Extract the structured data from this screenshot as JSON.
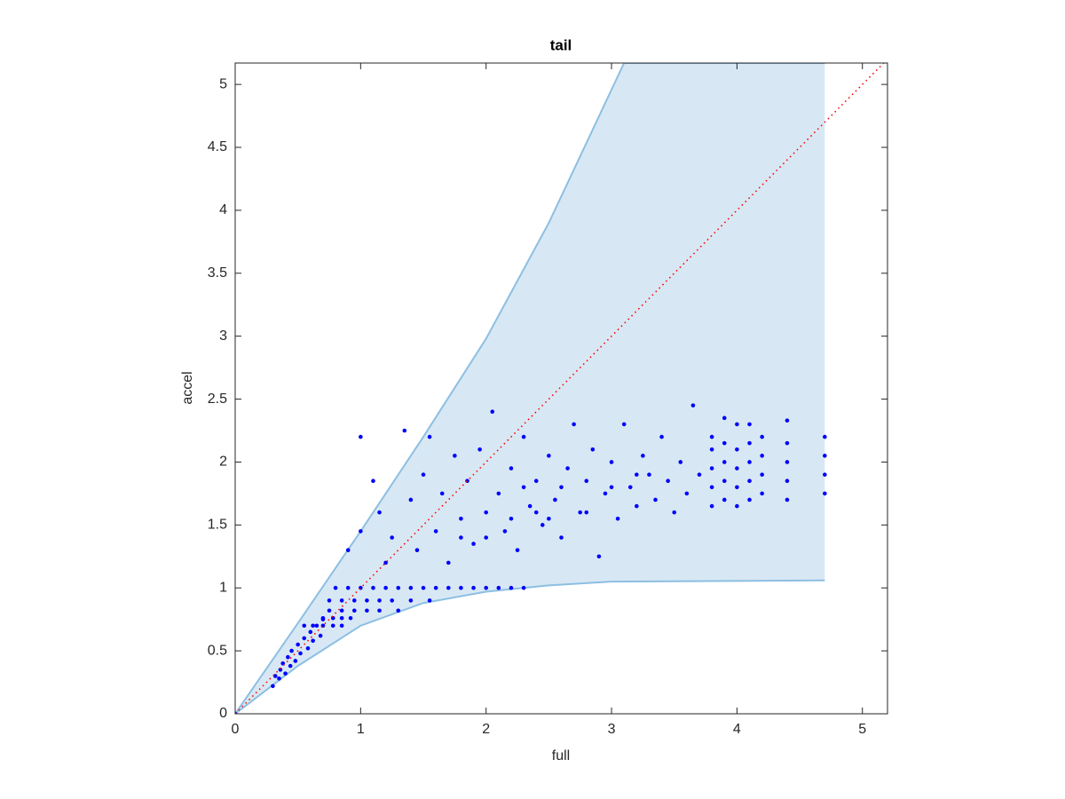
{
  "chart_data": {
    "type": "scatter",
    "title": "tail",
    "xlabel": "full",
    "ylabel": "accel",
    "xlim": [
      0,
      5.2
    ],
    "ylim": [
      0,
      5.17
    ],
    "xticks": [
      0,
      1,
      2,
      3,
      4,
      5
    ],
    "yticks": [
      0,
      0.5,
      1,
      1.5,
      2,
      2.5,
      3,
      3.5,
      4,
      4.5,
      5
    ],
    "band": {
      "color": "#d7e8f4",
      "edge_color": "#8dbfe2",
      "upper": {
        "x": [
          0,
          0.5,
          1,
          1.5,
          2,
          2.5,
          3.1,
          4.7
        ],
        "values": [
          0,
          0.72,
          1.45,
          2.2,
          2.98,
          3.9,
          5.17,
          5.17
        ]
      },
      "lower": {
        "x": [
          0,
          0.5,
          1,
          1.5,
          2,
          2.5,
          3,
          4.7
        ],
        "values": [
          0,
          0.38,
          0.7,
          0.88,
          0.97,
          1.02,
          1.05,
          1.06
        ]
      }
    },
    "reference": {
      "color": "#ff0000",
      "x": [
        0,
        5.2
      ],
      "values": [
        0,
        5.2
      ]
    },
    "series": [
      {
        "color": "#0000ff",
        "x": [
          0,
          0.3,
          0.32,
          0.35,
          0.36,
          0.38,
          0.4,
          0.42,
          0.44,
          0.45,
          0.48,
          0.5,
          0.52,
          0.55,
          0.58,
          0.6,
          0.62,
          0.65,
          0.68,
          0.7,
          0.55,
          0.62,
          0.7,
          0.78,
          0.85,
          0.7,
          0.78,
          0.85,
          0.92,
          0.75,
          0.85,
          0.95,
          1.05,
          1.15,
          1.3,
          0.75,
          0.85,
          0.95,
          1.05,
          1.15,
          1.25,
          1.4,
          1.55,
          0.8,
          0.9,
          1.0,
          1.1,
          1.2,
          1.3,
          1.4,
          1.5,
          1.6,
          1.7,
          1.8,
          1.9,
          2.0,
          2.1,
          2.2,
          2.3,
          0.9,
          1.0,
          1.0,
          1.1,
          1.15,
          1.2,
          1.25,
          1.35,
          1.4,
          1.45,
          1.5,
          1.55,
          1.6,
          1.65,
          1.7,
          1.75,
          1.8,
          1.85,
          1.9,
          1.95,
          2.0,
          2.05,
          2.1,
          2.15,
          2.2,
          2.25,
          2.3,
          2.35,
          2.4,
          2.45,
          2.5,
          2.55,
          2.6,
          2.65,
          2.7,
          2.75,
          2.8,
          2.85,
          2.9,
          2.95,
          3.0,
          3.05,
          3.1,
          3.15,
          3.2,
          3.25,
          3.3,
          3.35,
          3.4,
          3.45,
          3.5,
          3.55,
          3.6,
          3.65,
          3.7,
          2.2,
          2.4,
          2.6,
          2.8,
          3.0,
          3.2,
          1.8,
          2.0,
          2.3,
          2.5,
          3.8,
          3.8,
          3.8,
          3.8,
          3.8,
          3.9,
          3.9,
          3.9,
          3.9,
          3.9,
          4.0,
          4.0,
          4.0,
          4.0,
          4.0,
          4.1,
          4.1,
          4.1,
          4.1,
          4.1,
          4.2,
          4.2,
          4.2,
          4.2,
          4.4,
          4.4,
          4.4,
          4.4,
          4.4,
          4.7,
          4.7,
          4.7,
          4.7
        ],
        "values": [
          0,
          0.22,
          0.3,
          0.28,
          0.35,
          0.4,
          0.32,
          0.45,
          0.38,
          0.5,
          0.42,
          0.55,
          0.48,
          0.6,
          0.52,
          0.65,
          0.58,
          0.7,
          0.62,
          0.75,
          0.7,
          0.7,
          0.7,
          0.7,
          0.7,
          0.76,
          0.76,
          0.76,
          0.76,
          0.82,
          0.82,
          0.82,
          0.82,
          0.82,
          0.82,
          0.9,
          0.9,
          0.9,
          0.9,
          0.9,
          0.9,
          0.9,
          0.9,
          1,
          1,
          1,
          1,
          1,
          1,
          1,
          1,
          1,
          1,
          1,
          1,
          1,
          1,
          1,
          1,
          1.3,
          1.45,
          2.2,
          1.85,
          1.6,
          1.2,
          1.4,
          2.25,
          1.7,
          1.3,
          1.9,
          2.2,
          1.45,
          1.75,
          1.2,
          2.05,
          1.55,
          1.85,
          1.35,
          2.1,
          1.6,
          2.4,
          1.75,
          1.45,
          1.95,
          1.3,
          2.2,
          1.65,
          1.85,
          1.5,
          2.05,
          1.7,
          1.4,
          1.95,
          2.3,
          1.6,
          1.85,
          2.1,
          1.25,
          1.75,
          2.0,
          1.55,
          2.3,
          1.8,
          1.65,
          2.05,
          1.9,
          1.7,
          2.2,
          1.85,
          1.6,
          2.0,
          1.75,
          2.45,
          1.9,
          1.55,
          1.6,
          1.8,
          1.6,
          1.8,
          1.9,
          1.4,
          1.4,
          1.8,
          1.55,
          1.65,
          1.8,
          1.95,
          2.1,
          2.2,
          1.7,
          1.85,
          2.0,
          2.15,
          2.35,
          1.65,
          1.8,
          1.95,
          2.1,
          2.3,
          1.7,
          1.85,
          2.0,
          2.15,
          2.3,
          1.75,
          1.9,
          2.05,
          2.2,
          1.7,
          1.85,
          2.0,
          2.15,
          2.33,
          1.75,
          1.9,
          2.05,
          2.2
        ]
      }
    ]
  }
}
